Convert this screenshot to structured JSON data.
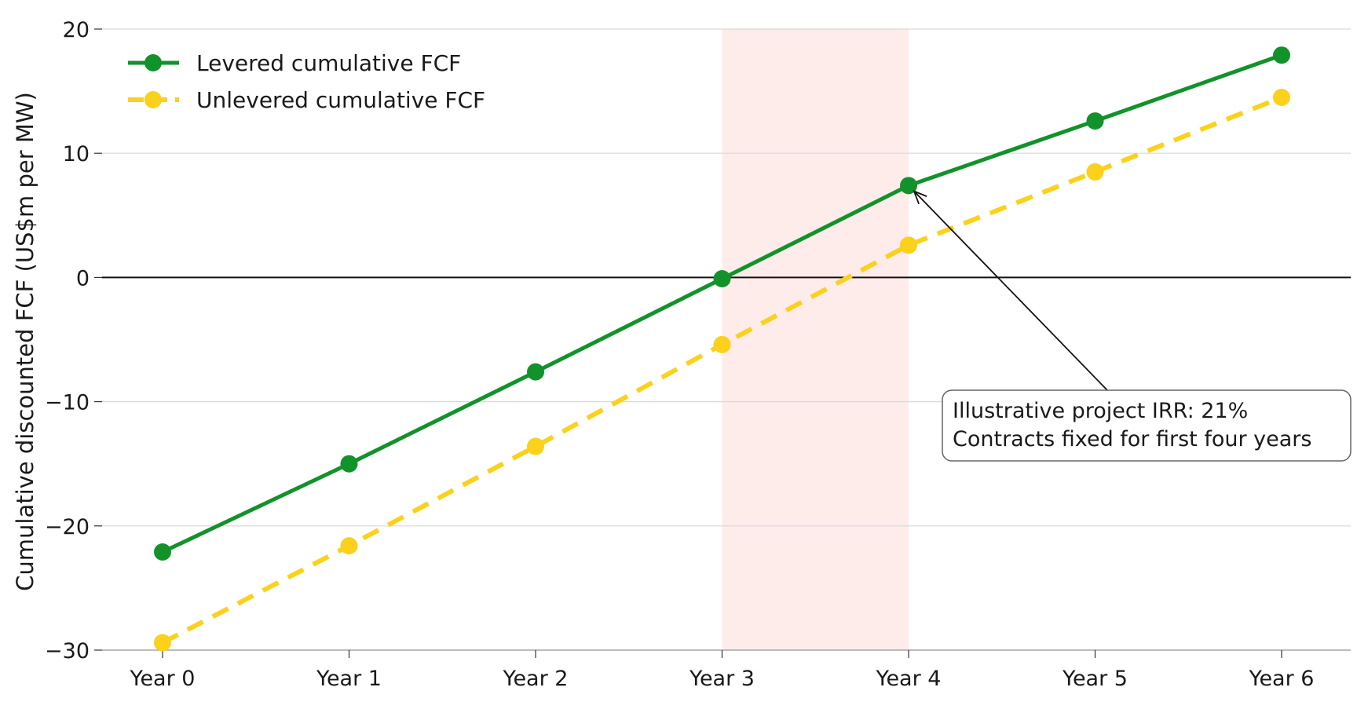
{
  "chart_data": {
    "type": "line",
    "title": "",
    "xlabel": "",
    "ylabel": "Cumulative discounted FCF (US$m per MW)",
    "categories": [
      "Year 0",
      "Year 1",
      "Year 2",
      "Year 3",
      "Year 4",
      "Year 5",
      "Year 6"
    ],
    "ylim": [
      -30,
      20
    ],
    "yticks": [
      -30,
      -20,
      -10,
      0,
      10,
      20
    ],
    "ytick_labels": [
      "−30",
      "−20",
      "−10",
      "0",
      "10",
      "20"
    ],
    "grid": "horizontal",
    "legend_position": "top-left",
    "series": [
      {
        "name": "Levered cumulative FCF",
        "values": [
          -22.1,
          -15.0,
          -7.6,
          -0.1,
          7.4,
          12.6,
          17.9
        ],
        "color": "#12922b",
        "style": "solid"
      },
      {
        "name": "Unlevered cumulative FCF",
        "values": [
          -29.4,
          -21.6,
          -13.6,
          -5.4,
          2.6,
          8.5,
          14.5
        ],
        "color": "#fbd11b",
        "style": "dashed"
      }
    ],
    "shaded_region": {
      "x_start": "Year 3",
      "x_end": "Year 4",
      "color": "#fdecea"
    },
    "annotation": {
      "lines": [
        "Illustrative project IRR: 21%",
        "Contracts fixed for first four years"
      ],
      "target_category": "Year 4",
      "target_value": 7.4
    }
  }
}
